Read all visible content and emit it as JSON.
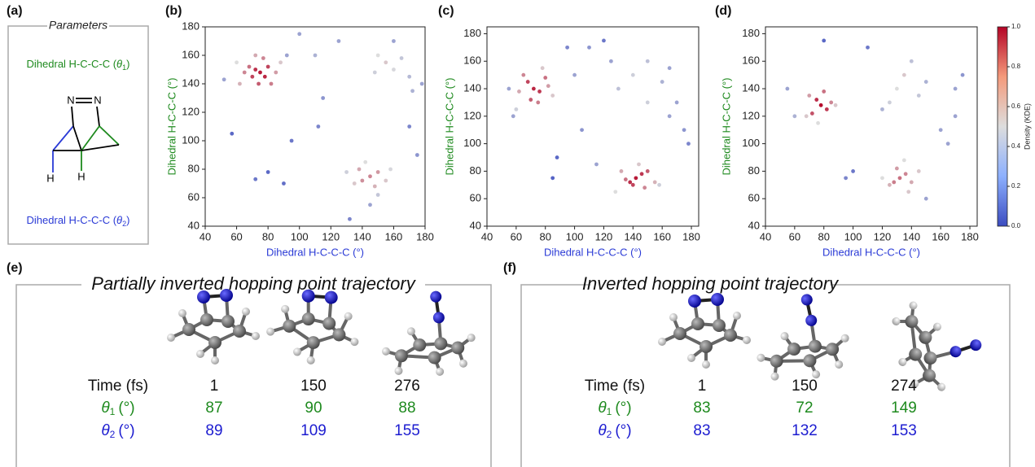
{
  "panel_labels": [
    "(a)",
    "(b)",
    "(c)",
    "(d)",
    "(e)",
    "(f)"
  ],
  "parameters": {
    "title": "Parameters",
    "theta1": {
      "text": "Dihedral H-C-C-C (",
      "symbol": "θ",
      "sub": "1",
      "close": ")"
    },
    "theta2": {
      "text": "Dihedral H-C-C-C (",
      "symbol": "θ",
      "sub": "2",
      "close": ")"
    },
    "atoms": [
      "N",
      "N",
      "H",
      "H"
    ]
  },
  "chart_data": [
    {
      "type": "scatter",
      "colormap": "coolwarm",
      "xlabel": "Dihedral H-C-C-C (°)",
      "ylabel": "Dihedral H-C-C-C (°)",
      "xlabel_color": "#2a3ad6",
      "ylabel_color": "#1e8a1e",
      "xlim": [
        40,
        180
      ],
      "ylim": [
        40,
        180
      ],
      "xticks": [
        40,
        60,
        80,
        100,
        120,
        140,
        160,
        180
      ],
      "yticks": [
        40,
        60,
        80,
        100,
        120,
        140,
        160,
        180
      ],
      "x": [
        75,
        72,
        78,
        70,
        80,
        74,
        68,
        82,
        65,
        77,
        85,
        62,
        72,
        88,
        60,
        145,
        140,
        150,
        138,
        148,
        155,
        135,
        142,
        158,
        130,
        150,
        145,
        155,
        150,
        160,
        165,
        148,
        170,
        172,
        160,
        57,
        72,
        80,
        90,
        95,
        112,
        125,
        100,
        115,
        178,
        175,
        170,
        132,
        52,
        110,
        92
      ],
      "values": [
        148,
        150,
        145,
        145,
        152,
        140,
        152,
        140,
        148,
        158,
        148,
        140,
        160,
        155,
        155,
        75,
        72,
        78,
        80,
        68,
        72,
        70,
        85,
        80,
        78,
        62,
        55,
        155,
        160,
        150,
        158,
        148,
        145,
        135,
        170,
        105,
        73,
        78,
        70,
        100,
        110,
        170,
        175,
        130,
        140,
        90,
        110,
        45,
        143,
        160,
        160
      ],
      "density": [
        0.95,
        0.9,
        0.92,
        0.85,
        0.85,
        0.8,
        0.75,
        0.72,
        0.7,
        0.7,
        0.65,
        0.6,
        0.62,
        0.55,
        0.5,
        0.7,
        0.68,
        0.66,
        0.62,
        0.6,
        0.55,
        0.55,
        0.5,
        0.48,
        0.45,
        0.42,
        0.3,
        0.55,
        0.5,
        0.48,
        0.42,
        0.45,
        0.38,
        0.35,
        0.3,
        0.1,
        0.15,
        0.1,
        0.12,
        0.15,
        0.2,
        0.3,
        0.3,
        0.25,
        0.3,
        0.25,
        0.2,
        0.2,
        0.3,
        0.35,
        0.3
      ]
    },
    {
      "type": "scatter",
      "colormap": "coolwarm",
      "xlabel": "Dihedral H-C-C-C (°)",
      "ylabel": "Dihedral H-C-C-C (°)",
      "xlabel_color": "#2a3ad6",
      "ylabel_color": "#1e8a1e",
      "xlim": [
        40,
        185
      ],
      "ylim": [
        40,
        185
      ],
      "xticks": [
        40,
        60,
        80,
        100,
        120,
        140,
        160,
        180
      ],
      "yticks": [
        40,
        60,
        80,
        100,
        120,
        140,
        160,
        180
      ],
      "x": [
        72,
        68,
        76,
        70,
        80,
        65,
        75,
        62,
        82,
        85,
        78,
        60,
        142,
        138,
        146,
        140,
        150,
        135,
        148,
        132,
        155,
        144,
        128,
        158,
        55,
        58,
        88,
        85,
        100,
        110,
        120,
        125,
        130,
        140,
        150,
        160,
        165,
        170,
        175,
        178,
        115,
        105,
        95,
        150,
        165
      ],
      "values": [
        140,
        145,
        138,
        132,
        148,
        150,
        130,
        138,
        142,
        135,
        155,
        125,
        75,
        72,
        78,
        70,
        80,
        74,
        68,
        80,
        72,
        85,
        65,
        70,
        140,
        120,
        90,
        75,
        150,
        170,
        175,
        160,
        140,
        150,
        130,
        145,
        120,
        130,
        110,
        100,
        85,
        110,
        170,
        160,
        155
      ],
      "density": [
        0.92,
        0.85,
        0.88,
        0.8,
        0.75,
        0.7,
        0.72,
        0.62,
        0.65,
        0.55,
        0.55,
        0.45,
        0.95,
        0.9,
        0.88,
        0.85,
        0.8,
        0.75,
        0.7,
        0.62,
        0.6,
        0.55,
        0.5,
        0.45,
        0.3,
        0.3,
        0.1,
        0.08,
        0.3,
        0.25,
        0.15,
        0.3,
        0.4,
        0.45,
        0.45,
        0.35,
        0.3,
        0.3,
        0.25,
        0.2,
        0.3,
        0.25,
        0.2,
        0.4,
        0.3
      ]
    },
    {
      "type": "scatter",
      "colormap": "coolwarm",
      "xlabel": "Dihedral H-C-C-C (°)",
      "ylabel": "Dihedral H-C-C-C (°)",
      "xlabel_color": "#2a3ad6",
      "ylabel_color": "#1e8a1e",
      "xlim": [
        40,
        185
      ],
      "ylim": [
        40,
        185
      ],
      "xticks": [
        40,
        60,
        80,
        100,
        120,
        140,
        160,
        180
      ],
      "yticks": [
        40,
        60,
        80,
        100,
        120,
        140,
        160,
        180
      ],
      "x": [
        78,
        75,
        82,
        72,
        80,
        85,
        70,
        88,
        68,
        76,
        132,
        128,
        136,
        130,
        140,
        125,
        138,
        145,
        120,
        135,
        130,
        135,
        125,
        140,
        145,
        120,
        150,
        160,
        165,
        170,
        175,
        55,
        60,
        95,
        100,
        80,
        110,
        150,
        170
      ],
      "values": [
        128,
        132,
        125,
        122,
        138,
        130,
        135,
        128,
        120,
        115,
        75,
        72,
        78,
        82,
        72,
        70,
        65,
        80,
        75,
        88,
        140,
        150,
        130,
        160,
        135,
        125,
        145,
        110,
        100,
        120,
        150,
        140,
        120,
        75,
        80,
        175,
        170,
        60,
        140
      ],
      "density": [
        0.98,
        0.9,
        0.88,
        0.82,
        0.75,
        0.7,
        0.65,
        0.55,
        0.55,
        0.5,
        0.75,
        0.72,
        0.7,
        0.65,
        0.62,
        0.6,
        0.55,
        0.55,
        0.5,
        0.5,
        0.5,
        0.55,
        0.45,
        0.4,
        0.42,
        0.35,
        0.35,
        0.3,
        0.3,
        0.3,
        0.25,
        0.3,
        0.35,
        0.2,
        0.15,
        0.1,
        0.15,
        0.3,
        0.3
      ],
      "colorbar": {
        "label": "Density (KDE)",
        "ticks": [
          {
            "value": 0,
            "label": "0.0"
          },
          {
            "value": 0.2,
            "label": "0.2"
          },
          {
            "value": 0.4,
            "label": "0.4"
          },
          {
            "value": 0.6,
            "label": "0.6"
          },
          {
            "value": 0.8,
            "label": "0.8"
          },
          {
            "value": 1,
            "label": "1.0"
          }
        ]
      }
    }
  ],
  "trajectories": [
    {
      "title": "Partially inverted hopping point trajectory",
      "header": "Time (fs)",
      "times": [
        1,
        150,
        276
      ],
      "rows": [
        {
          "symbol": "θ",
          "sub": "1",
          "unit": "(°)",
          "color": "#1e8a1e",
          "values": [
            87,
            90,
            88
          ]
        },
        {
          "symbol": "θ",
          "sub": "2",
          "unit": "(°)",
          "color": "#1c1cd0",
          "values": [
            89,
            109,
            155
          ]
        }
      ]
    },
    {
      "title": "Inverted hopping point trajectory",
      "header": "Time (fs)",
      "times": [
        1,
        150,
        274
      ],
      "rows": [
        {
          "symbol": "θ",
          "sub": "1",
          "unit": "(°)",
          "color": "#1e8a1e",
          "values": [
            83,
            72,
            149
          ]
        },
        {
          "symbol": "θ",
          "sub": "2",
          "unit": "(°)",
          "color": "#1c1cd0",
          "values": [
            83,
            132,
            153
          ]
        }
      ]
    }
  ]
}
